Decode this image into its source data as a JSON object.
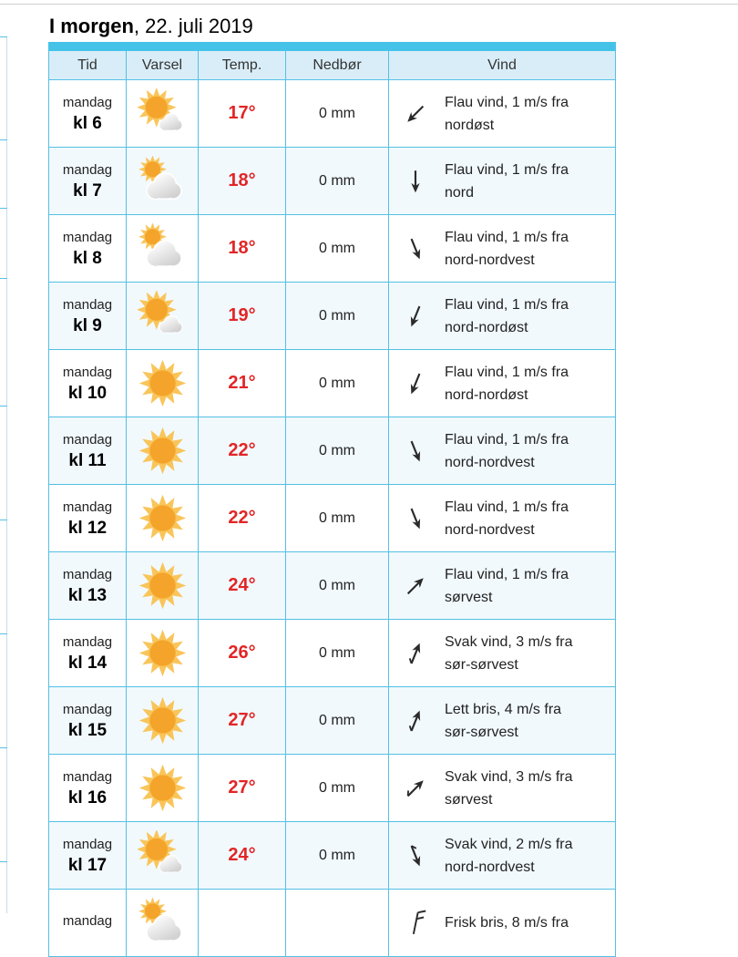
{
  "header": {
    "title_bold": "I morgen",
    "title_rest": ", 22. juli 2019"
  },
  "table": {
    "columns": [
      "Tid",
      "Varsel",
      "Temp.",
      "Nedbør",
      "Vind"
    ],
    "rows": [
      {
        "day": "mandag",
        "hour": "kl 6",
        "icon": "sun-small-cloud-icon",
        "temp": "17°",
        "precip": "0 mm",
        "wind": {
          "icon": "wind-arrow-icon",
          "arrow_deg": 225,
          "tail": false,
          "line1": "Flau vind, 1 m/s fra",
          "line2": "nordøst"
        }
      },
      {
        "day": "mandag",
        "hour": "kl 7",
        "icon": "cloud-sun-icon",
        "temp": "18°",
        "precip": "0 mm",
        "wind": {
          "icon": "wind-arrow-icon",
          "arrow_deg": 180,
          "tail": false,
          "line1": "Flau vind, 1 m/s fra",
          "line2": "nord"
        }
      },
      {
        "day": "mandag",
        "hour": "kl 8",
        "icon": "cloud-sun-icon",
        "temp": "18°",
        "precip": "0 mm",
        "wind": {
          "icon": "wind-arrow-icon",
          "arrow_deg": 158,
          "tail": false,
          "line1": "Flau vind, 1 m/s fra",
          "line2": "nord-nordvest"
        }
      },
      {
        "day": "mandag",
        "hour": "kl 9",
        "icon": "sun-small-cloud-icon",
        "temp": "19°",
        "precip": "0 mm",
        "wind": {
          "icon": "wind-arrow-icon",
          "arrow_deg": 202,
          "tail": false,
          "line1": "Flau vind, 1 m/s fra",
          "line2": "nord-nordøst"
        }
      },
      {
        "day": "mandag",
        "hour": "kl 10",
        "icon": "sun-icon",
        "temp": "21°",
        "precip": "0 mm",
        "wind": {
          "icon": "wind-arrow-icon",
          "arrow_deg": 202,
          "tail": false,
          "line1": "Flau vind, 1 m/s fra",
          "line2": "nord-nordøst"
        }
      },
      {
        "day": "mandag",
        "hour": "kl 11",
        "icon": "sun-icon",
        "temp": "22°",
        "precip": "0 mm",
        "wind": {
          "icon": "wind-arrow-icon",
          "arrow_deg": 158,
          "tail": false,
          "line1": "Flau vind, 1 m/s fra",
          "line2": "nord-nordvest"
        }
      },
      {
        "day": "mandag",
        "hour": "kl 12",
        "icon": "sun-icon",
        "temp": "22°",
        "precip": "0 mm",
        "wind": {
          "icon": "wind-arrow-icon",
          "arrow_deg": 158,
          "tail": false,
          "line1": "Flau vind, 1 m/s fra",
          "line2": "nord-nordvest"
        }
      },
      {
        "day": "mandag",
        "hour": "kl 13",
        "icon": "sun-icon",
        "temp": "24°",
        "precip": "0 mm",
        "wind": {
          "icon": "wind-arrow-icon",
          "arrow_deg": 45,
          "tail": false,
          "line1": "Flau vind, 1 m/s fra",
          "line2": "sørvest"
        }
      },
      {
        "day": "mandag",
        "hour": "kl 14",
        "icon": "sun-icon",
        "temp": "26°",
        "precip": "0 mm",
        "wind": {
          "icon": "wind-arrow-icon",
          "arrow_deg": 22,
          "tail": true,
          "line1": "Svak vind, 3 m/s fra",
          "line2": "sør-sørvest"
        }
      },
      {
        "day": "mandag",
        "hour": "kl 15",
        "icon": "sun-icon",
        "temp": "27°",
        "precip": "0 mm",
        "wind": {
          "icon": "wind-arrow-icon",
          "arrow_deg": 22,
          "tail": true,
          "line1": "Lett bris, 4 m/s fra",
          "line2": "sør-sørvest"
        }
      },
      {
        "day": "mandag",
        "hour": "kl 16",
        "icon": "sun-icon",
        "temp": "27°",
        "precip": "0 mm",
        "wind": {
          "icon": "wind-arrow-icon",
          "arrow_deg": 45,
          "tail": true,
          "line1": "Svak vind, 3 m/s fra",
          "line2": "sørvest"
        }
      },
      {
        "day": "mandag",
        "hour": "kl 17",
        "icon": "sun-small-cloud-icon",
        "temp": "24°",
        "precip": "0 mm",
        "wind": {
          "icon": "wind-arrow-icon",
          "arrow_deg": 158,
          "tail": true,
          "line1": "Svak vind, 2 m/s fra",
          "line2": "nord-nordvest"
        }
      }
    ],
    "partial_row": {
      "day": "mandag",
      "icon": "cloud-sun-icon",
      "wind": {
        "icon": "wind-barb-icon",
        "line1": "Frisk bris, 8 m/s fra",
        "line2": ""
      }
    }
  },
  "colors": {
    "accent_bar": "#45c2e8",
    "header_bg": "#d9edf8",
    "table_border": "#55c0e4",
    "alt_row_bg": "#f1f9fd",
    "temperature_red": "#e22526",
    "text_dark": "#222222",
    "page_divider": "#cfcfcf",
    "sun_core": "#f4a42a",
    "sun_rays": "#f9c55a",
    "cloud_light": "#fefefe",
    "cloud_dark": "#d2d2d2",
    "wind_icon": "#2b2b2b"
  }
}
